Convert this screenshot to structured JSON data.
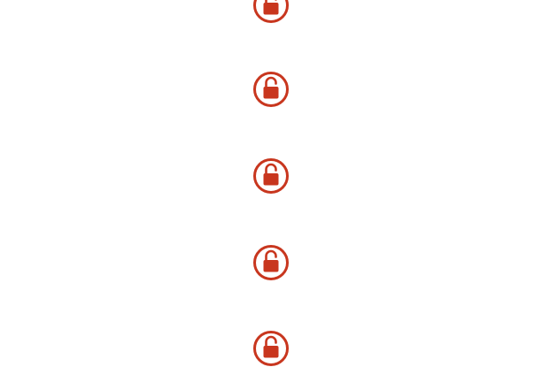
{
  "colors": {
    "accent": "#c8361e",
    "background": "#ffffff"
  },
  "icons": {
    "lock": "unlocked-padlock-icon"
  },
  "items": [
    {
      "icon": "unlocked-padlock-icon"
    },
    {
      "icon": "unlocked-padlock-icon"
    },
    {
      "icon": "unlocked-padlock-icon"
    },
    {
      "icon": "unlocked-padlock-icon"
    },
    {
      "icon": "unlocked-padlock-icon"
    }
  ]
}
